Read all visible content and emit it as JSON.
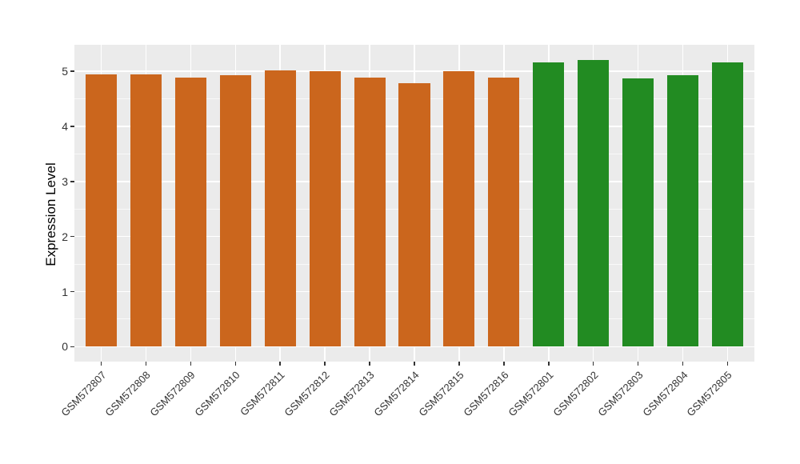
{
  "chart_data": {
    "type": "bar",
    "ylabel": "Expression Level",
    "categories": [
      "GSM572807",
      "GSM572808",
      "GSM572809",
      "GSM572810",
      "GSM572811",
      "GSM572812",
      "GSM572813",
      "GSM572814",
      "GSM572815",
      "GSM572816",
      "GSM572801",
      "GSM572802",
      "GSM572803",
      "GSM572804",
      "GSM572805"
    ],
    "values": [
      4.95,
      4.95,
      4.89,
      4.93,
      5.01,
      5.0,
      4.89,
      4.78,
      5.0,
      4.89,
      5.16,
      5.21,
      4.87,
      4.93,
      5.16
    ],
    "bar_colors": [
      "#CB661D",
      "#CB661D",
      "#CB661D",
      "#CB661D",
      "#CB661D",
      "#CB661D",
      "#CB661D",
      "#CB661D",
      "#CB661D",
      "#CB661D",
      "#228B22",
      "#228B22",
      "#228B22",
      "#228B22",
      "#228B22"
    ],
    "yticks": [
      0,
      1,
      2,
      3,
      4,
      5
    ],
    "ylim": [
      -0.27,
      5.48
    ],
    "bar_width_fraction": 0.7,
    "grid": true,
    "legend": false,
    "styles": {
      "figure_bg": "#FFFFFF",
      "panel_bg": "#EBEBEB",
      "grid_color": "#FFFFFF",
      "tick_mark_color": "#333333",
      "axis_text_color": "#333333",
      "axis_title_color": "#000000"
    }
  }
}
